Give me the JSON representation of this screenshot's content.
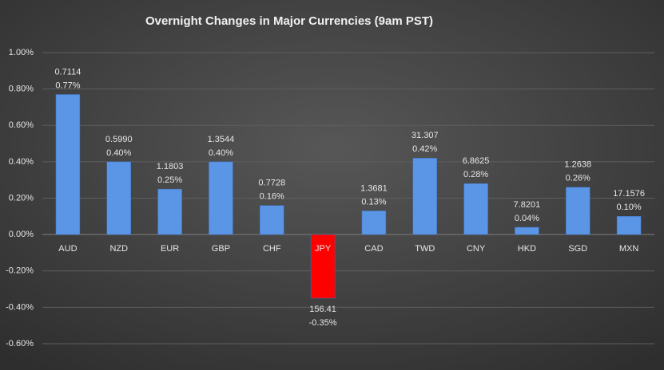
{
  "chart_data": {
    "type": "bar",
    "title": "Overnight Changes in Major Currencies (9am PST)",
    "categories": [
      "AUD",
      "NZD",
      "EUR",
      "GBP",
      "CHF",
      "JPY",
      "CAD",
      "TWD",
      "CNY",
      "HKD",
      "SGD",
      "MXN"
    ],
    "values": [
      0.77,
      0.4,
      0.25,
      0.4,
      0.16,
      -0.35,
      0.13,
      0.42,
      0.28,
      0.04,
      0.26,
      0.1
    ],
    "value_labels": [
      "0.77%",
      "0.40%",
      "0.25%",
      "0.40%",
      "0.16%",
      "-0.35%",
      "0.13%",
      "0.42%",
      "0.28%",
      "0.04%",
      "0.26%",
      "0.10%"
    ],
    "rates": [
      "0.7114",
      "0.5990",
      "1.1803",
      "1.3544",
      "0.7728",
      "156.41",
      "1.3681",
      "31.307",
      "6.8625",
      "7.8201",
      "1.2638",
      "17.1576"
    ],
    "colors": [
      "#5b95e6",
      "#5b95e6",
      "#5b95e6",
      "#5b95e6",
      "#5b95e6",
      "#ff0000",
      "#5b95e6",
      "#5b95e6",
      "#5b95e6",
      "#5b95e6",
      "#5b95e6",
      "#5b95e6"
    ],
    "ylim": [
      -0.6,
      1.0
    ],
    "yticks": [
      {
        "value": -0.6,
        "label": "-0.60%"
      },
      {
        "value": -0.4,
        "label": "-0.40%"
      },
      {
        "value": -0.2,
        "label": "-0.20%"
      },
      {
        "value": 0,
        "label": "0.00%"
      },
      {
        "value": 0.2,
        "label": "0.20%"
      },
      {
        "value": 0.4,
        "label": "0.40%"
      },
      {
        "value": 0.6,
        "label": "0.60%"
      },
      {
        "value": 0.8,
        "label": "0.80%"
      },
      {
        "value": 1.0,
        "label": "1.00%"
      }
    ],
    "grid": true
  }
}
